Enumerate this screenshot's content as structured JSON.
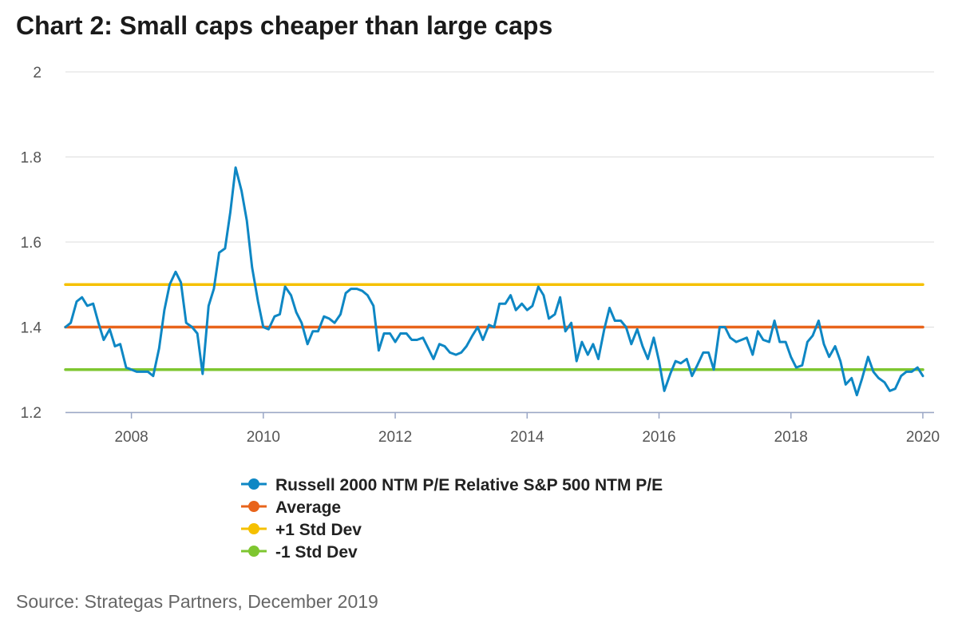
{
  "title": "Chart 2: Small caps cheaper than large caps",
  "source": "Source: Strategas Partners, December 2019",
  "chart_data": {
    "type": "line",
    "title": "Chart 2: Small caps cheaper than large caps",
    "xlabel": "",
    "ylabel": "",
    "xlim": [
      2007.0,
      2020.17
    ],
    "ylim": [
      1.2,
      2
    ],
    "y_ticks": [
      "1.2",
      "1.4",
      "1.6",
      "1.8",
      "2"
    ],
    "x_ticks": [
      "2008",
      "2010",
      "2012",
      "2014",
      "2016",
      "2018",
      "2020"
    ],
    "grid": "horizontal",
    "legend_position": "bottom",
    "series": [
      {
        "name": "Russell 2000 NTM P/E Relative S&P 500 NTM P/E",
        "color": "#0e87c4",
        "points": [
          [
            2007.0,
            1.4
          ],
          [
            2007.08,
            1.41
          ],
          [
            2007.17,
            1.46
          ],
          [
            2007.25,
            1.47
          ],
          [
            2007.33,
            1.45
          ],
          [
            2007.42,
            1.455
          ],
          [
            2007.5,
            1.41
          ],
          [
            2007.58,
            1.37
          ],
          [
            2007.67,
            1.395
          ],
          [
            2007.75,
            1.355
          ],
          [
            2007.83,
            1.36
          ],
          [
            2007.92,
            1.305
          ],
          [
            2008.0,
            1.3
          ],
          [
            2008.08,
            1.295
          ],
          [
            2008.17,
            1.295
          ],
          [
            2008.25,
            1.295
          ],
          [
            2008.33,
            1.285
          ],
          [
            2008.42,
            1.35
          ],
          [
            2008.5,
            1.44
          ],
          [
            2008.58,
            1.5
          ],
          [
            2008.67,
            1.53
          ],
          [
            2008.75,
            1.505
          ],
          [
            2008.83,
            1.41
          ],
          [
            2008.92,
            1.4
          ],
          [
            2009.0,
            1.385
          ],
          [
            2009.08,
            1.29
          ],
          [
            2009.17,
            1.45
          ],
          [
            2009.25,
            1.49
          ],
          [
            2009.33,
            1.575
          ],
          [
            2009.42,
            1.585
          ],
          [
            2009.5,
            1.67
          ],
          [
            2009.58,
            1.775
          ],
          [
            2009.67,
            1.72
          ],
          [
            2009.75,
            1.65
          ],
          [
            2009.83,
            1.54
          ],
          [
            2009.92,
            1.46
          ],
          [
            2010.0,
            1.4
          ],
          [
            2010.08,
            1.395
          ],
          [
            2010.17,
            1.425
          ],
          [
            2010.25,
            1.43
          ],
          [
            2010.33,
            1.495
          ],
          [
            2010.42,
            1.475
          ],
          [
            2010.5,
            1.435
          ],
          [
            2010.58,
            1.41
          ],
          [
            2010.67,
            1.36
          ],
          [
            2010.75,
            1.39
          ],
          [
            2010.83,
            1.39
          ],
          [
            2010.92,
            1.425
          ],
          [
            2011.0,
            1.42
          ],
          [
            2011.08,
            1.41
          ],
          [
            2011.17,
            1.43
          ],
          [
            2011.25,
            1.48
          ],
          [
            2011.33,
            1.49
          ],
          [
            2011.42,
            1.49
          ],
          [
            2011.5,
            1.485
          ],
          [
            2011.58,
            1.475
          ],
          [
            2011.67,
            1.45
          ],
          [
            2011.75,
            1.345
          ],
          [
            2011.83,
            1.385
          ],
          [
            2011.92,
            1.385
          ],
          [
            2012.0,
            1.365
          ],
          [
            2012.08,
            1.385
          ],
          [
            2012.17,
            1.385
          ],
          [
            2012.25,
            1.37
          ],
          [
            2012.33,
            1.37
          ],
          [
            2012.42,
            1.375
          ],
          [
            2012.5,
            1.35
          ],
          [
            2012.58,
            1.325
          ],
          [
            2012.67,
            1.36
          ],
          [
            2012.75,
            1.355
          ],
          [
            2012.83,
            1.34
          ],
          [
            2012.92,
            1.335
          ],
          [
            2013.0,
            1.34
          ],
          [
            2013.08,
            1.355
          ],
          [
            2013.17,
            1.38
          ],
          [
            2013.25,
            1.4
          ],
          [
            2013.33,
            1.37
          ],
          [
            2013.42,
            1.405
          ],
          [
            2013.5,
            1.4
          ],
          [
            2013.58,
            1.455
          ],
          [
            2013.67,
            1.455
          ],
          [
            2013.75,
            1.475
          ],
          [
            2013.83,
            1.44
          ],
          [
            2013.92,
            1.455
          ],
          [
            2014.0,
            1.44
          ],
          [
            2014.08,
            1.45
          ],
          [
            2014.17,
            1.495
          ],
          [
            2014.25,
            1.475
          ],
          [
            2014.33,
            1.42
          ],
          [
            2014.42,
            1.43
          ],
          [
            2014.5,
            1.47
          ],
          [
            2014.58,
            1.39
          ],
          [
            2014.67,
            1.41
          ],
          [
            2014.75,
            1.32
          ],
          [
            2014.83,
            1.365
          ],
          [
            2014.92,
            1.335
          ],
          [
            2015.0,
            1.36
          ],
          [
            2015.08,
            1.325
          ],
          [
            2015.17,
            1.395
          ],
          [
            2015.25,
            1.445
          ],
          [
            2015.33,
            1.415
          ],
          [
            2015.42,
            1.415
          ],
          [
            2015.5,
            1.4
          ],
          [
            2015.58,
            1.36
          ],
          [
            2015.67,
            1.395
          ],
          [
            2015.75,
            1.355
          ],
          [
            2015.83,
            1.325
          ],
          [
            2015.92,
            1.375
          ],
          [
            2016.0,
            1.32
          ],
          [
            2016.08,
            1.25
          ],
          [
            2016.17,
            1.29
          ],
          [
            2016.25,
            1.32
          ],
          [
            2016.33,
            1.315
          ],
          [
            2016.42,
            1.325
          ],
          [
            2016.5,
            1.285
          ],
          [
            2016.58,
            1.31
          ],
          [
            2016.67,
            1.34
          ],
          [
            2016.75,
            1.34
          ],
          [
            2016.83,
            1.3
          ],
          [
            2016.92,
            1.4
          ],
          [
            2017.0,
            1.4
          ],
          [
            2017.08,
            1.375
          ],
          [
            2017.17,
            1.365
          ],
          [
            2017.25,
            1.37
          ],
          [
            2017.33,
            1.375
          ],
          [
            2017.42,
            1.335
          ],
          [
            2017.5,
            1.39
          ],
          [
            2017.58,
            1.37
          ],
          [
            2017.67,
            1.365
          ],
          [
            2017.75,
            1.415
          ],
          [
            2017.83,
            1.365
          ],
          [
            2017.92,
            1.365
          ],
          [
            2018.0,
            1.33
          ],
          [
            2018.08,
            1.305
          ],
          [
            2018.17,
            1.31
          ],
          [
            2018.25,
            1.365
          ],
          [
            2018.33,
            1.38
          ],
          [
            2018.42,
            1.415
          ],
          [
            2018.5,
            1.36
          ],
          [
            2018.58,
            1.33
          ],
          [
            2018.67,
            1.355
          ],
          [
            2018.75,
            1.32
          ],
          [
            2018.83,
            1.265
          ],
          [
            2018.92,
            1.28
          ],
          [
            2019.0,
            1.24
          ],
          [
            2019.08,
            1.28
          ],
          [
            2019.17,
            1.33
          ],
          [
            2019.25,
            1.295
          ],
          [
            2019.33,
            1.28
          ],
          [
            2019.42,
            1.27
          ],
          [
            2019.5,
            1.25
          ],
          [
            2019.58,
            1.255
          ],
          [
            2019.67,
            1.285
          ],
          [
            2019.75,
            1.295
          ],
          [
            2019.83,
            1.295
          ],
          [
            2019.92,
            1.305
          ],
          [
            2020.0,
            1.285
          ]
        ]
      },
      {
        "name": "Average",
        "color": "#e8641b",
        "points": [
          [
            2007.0,
            1.4
          ],
          [
            2020.0,
            1.4
          ]
        ]
      },
      {
        "name": "+1 Std Dev",
        "color": "#f5c000",
        "points": [
          [
            2007.0,
            1.5
          ],
          [
            2020.0,
            1.5
          ]
        ]
      },
      {
        "name": "-1 Std Dev",
        "color": "#7ec630",
        "points": [
          [
            2007.0,
            1.3
          ],
          [
            2020.0,
            1.3
          ]
        ]
      }
    ]
  }
}
